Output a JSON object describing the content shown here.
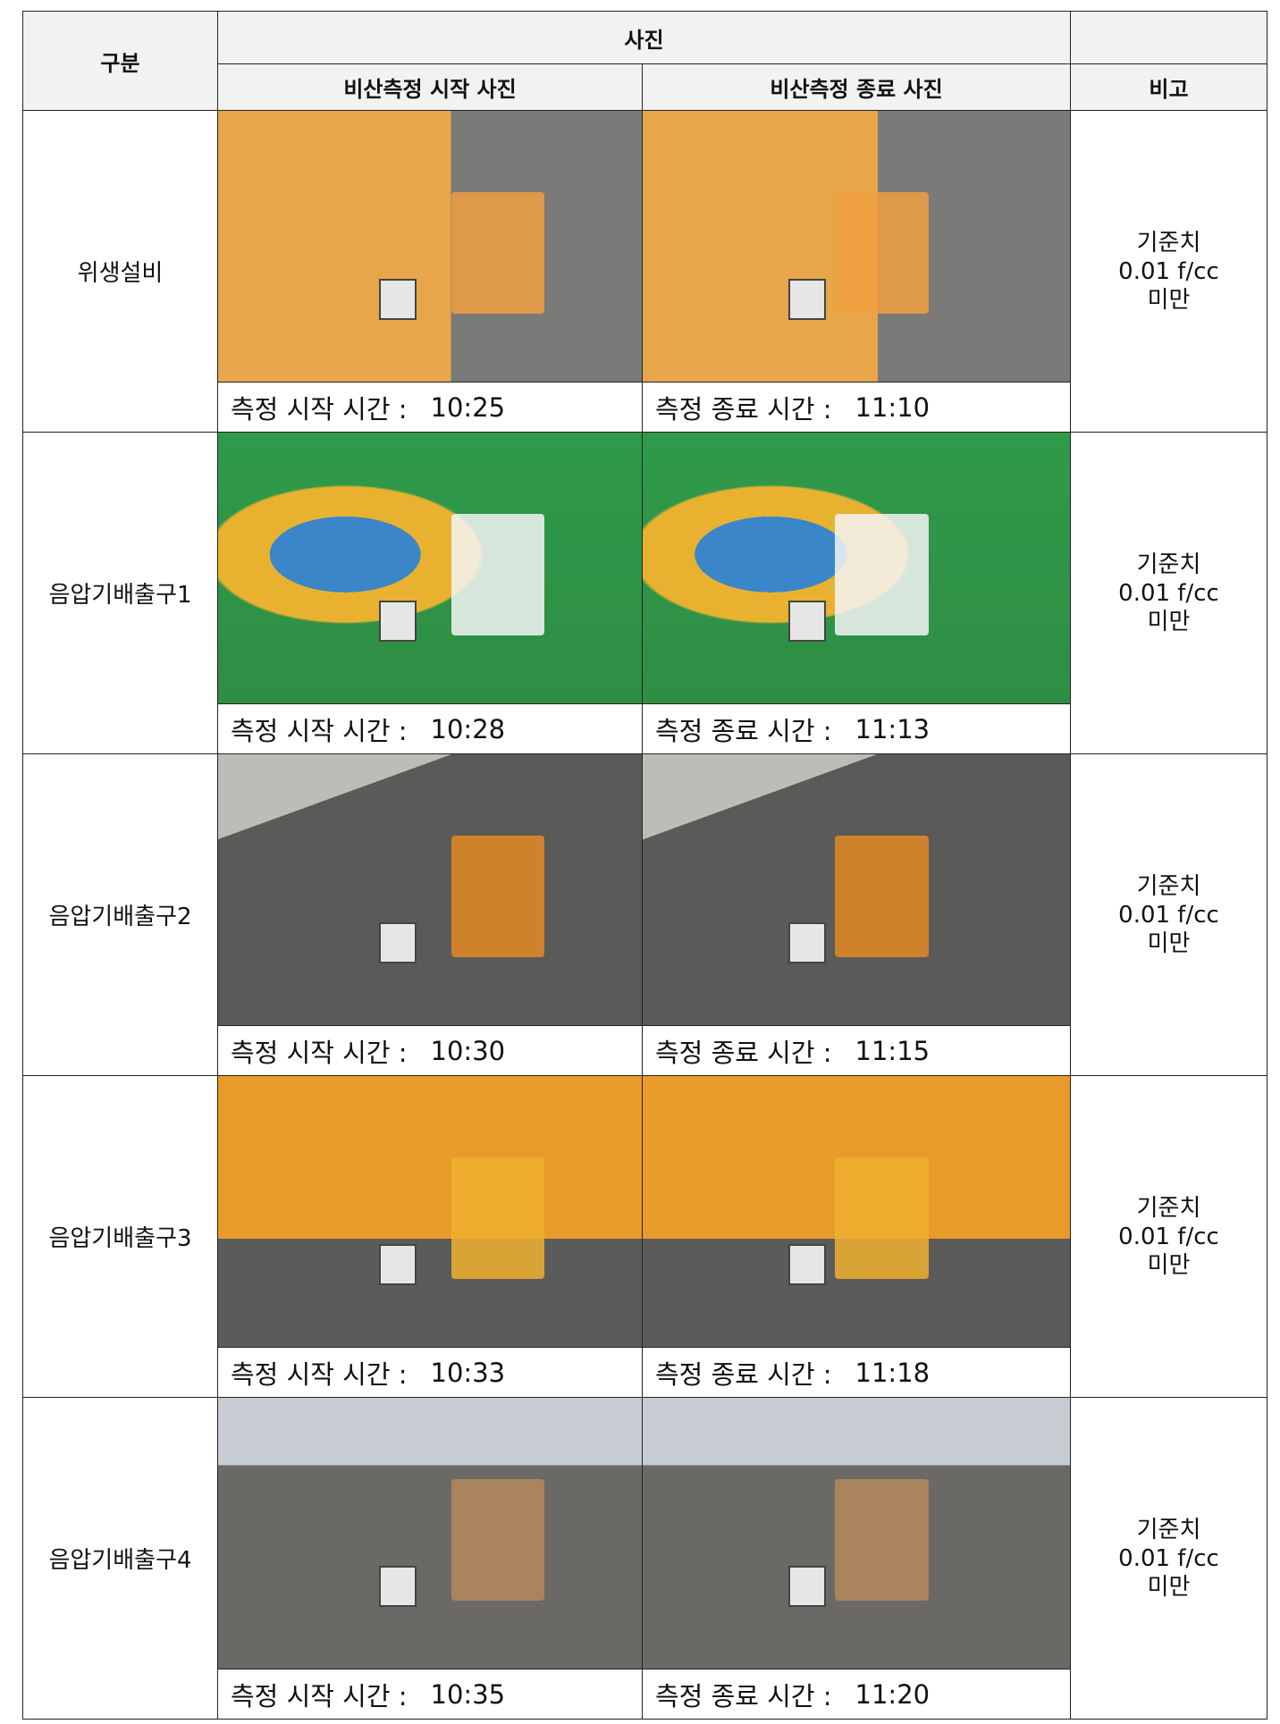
{
  "table": {
    "header": {
      "category": "구분",
      "photo": "사진",
      "start_photo": "비산측정 시작 사진",
      "end_photo": "비산측정 종료 사진",
      "remark": "비고"
    },
    "rows": [
      {
        "name": "위생설비",
        "start_label": "측정 시작 시간 :",
        "start_time": "10:25",
        "end_label": "측정 종료 시간 :",
        "end_time": "11:10",
        "remark": [
          "기준치",
          "0.01 f/cc",
          "미만"
        ]
      },
      {
        "name": "음압기배출구1",
        "start_label": "측정 시작 시간 :",
        "start_time": "10:28",
        "end_label": "측정 종료 시간 :",
        "end_time": "11:13",
        "remark": [
          "기준치",
          "0.01 f/cc",
          "미만"
        ]
      },
      {
        "name": "음압기배출구2",
        "start_label": "측정 시작 시간 :",
        "start_time": "10:30",
        "end_label": "측정 종료 시간 :",
        "end_time": "11:15",
        "remark": [
          "기준치",
          "0.01 f/cc",
          "미만"
        ]
      },
      {
        "name": "음압기배출구3",
        "start_label": "측정 시작 시간 :",
        "start_time": "10:33",
        "end_label": "측정 종료 시간 :",
        "end_time": "11:18",
        "remark": [
          "기준치",
          "0.01 f/cc",
          "미만"
        ]
      },
      {
        "name": "음압기배출구4",
        "start_label": "측정 시작 시간 :",
        "start_time": "10:35",
        "end_label": "측정 종료 시간 :",
        "end_time": "11:20",
        "remark": [
          "기준치",
          "0.01 f/cc",
          "미만"
        ]
      }
    ]
  }
}
